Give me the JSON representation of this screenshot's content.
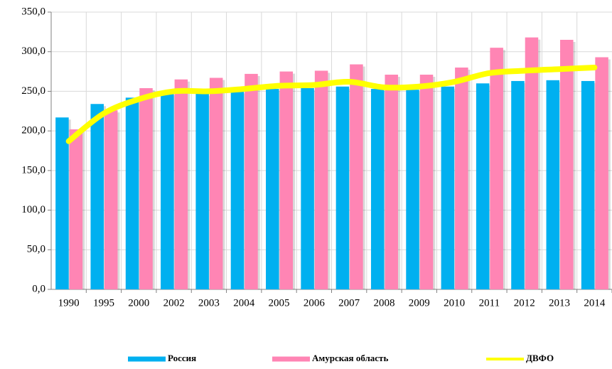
{
  "chart_data": {
    "type": "bar",
    "categories": [
      "1990",
      "1995",
      "2000",
      "2002",
      "2003",
      "2004",
      "2005",
      "2006",
      "2007",
      "2008",
      "2009",
      "2010",
      "2011",
      "2012",
      "2013",
      "2014"
    ],
    "series": [
      {
        "name": "Россия",
        "color": "#00b0f0",
        "type": "bar",
        "values": [
          217,
          234,
          242,
          248,
          247,
          250,
          253,
          254,
          256,
          253,
          252,
          256,
          260,
          263,
          264,
          263
        ]
      },
      {
        "name": "Амурская область",
        "color": "#ff85b4",
        "type": "bar",
        "values": [
          202,
          226,
          254,
          265,
          267,
          272,
          275,
          276,
          284,
          271,
          271,
          280,
          305,
          318,
          315,
          293
        ]
      },
      {
        "name": "ДВФО",
        "color": "#ffff00",
        "type": "line",
        "values": [
          187,
          222,
          240,
          250,
          250,
          253,
          257,
          258,
          262,
          255,
          256,
          262,
          273,
          276,
          278,
          280
        ]
      }
    ],
    "ylim": [
      0,
      350
    ],
    "yticks": [
      {
        "value": 0,
        "label": "0,0"
      },
      {
        "value": 50,
        "label": "50,0"
      },
      {
        "value": 100,
        "label": "100,0"
      },
      {
        "value": 150,
        "label": "150,0"
      },
      {
        "value": 200,
        "label": "200,0"
      },
      {
        "value": 250,
        "label": "250,0"
      },
      {
        "value": 300,
        "label": "300,0"
      },
      {
        "value": 350,
        "label": "350,0"
      }
    ],
    "grid": true,
    "legend": "bottom"
  }
}
